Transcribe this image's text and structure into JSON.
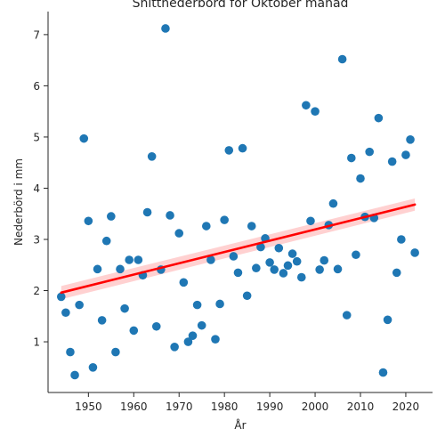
{
  "chart_data": {
    "type": "scatter",
    "title": "Snittnederbörd för Oktober månad",
    "xlabel": "År",
    "ylabel": "Nederbörd i mm",
    "xlim": [
      1941.1,
      2025.9
    ],
    "ylim": [
      0.01,
      7.45
    ],
    "x_ticks": [
      1950,
      1960,
      1970,
      1980,
      1990,
      2000,
      2010,
      2020
    ],
    "y_ticks": [
      1,
      2,
      3,
      4,
      5,
      6,
      7
    ],
    "grid": false,
    "legend": "none",
    "colors": {
      "points": "#1f77b4",
      "regression_line": "#ff0000",
      "confidence_band": "#ffb3b3",
      "axes": "#262626"
    },
    "series": [
      {
        "x": [
          1944,
          1945,
          1946,
          1947,
          1948,
          1949,
          1950,
          1951,
          1952,
          1953,
          1954,
          1955,
          1956,
          1957,
          1958,
          1959,
          1960,
          1961,
          1962,
          1963,
          1964,
          1965,
          1966,
          1967,
          1968,
          1969,
          1970,
          1971,
          1972,
          1973,
          1974,
          1975,
          1976,
          1977,
          1978,
          1979,
          1980,
          1981,
          1982,
          1983,
          1984,
          1985,
          1986,
          1987,
          1988,
          1989,
          1990,
          1991,
          1992,
          1993,
          1994,
          1995,
          1996,
          1997,
          1998,
          1999,
          2000,
          2001,
          2002,
          2003,
          2004,
          2005,
          2006,
          2007,
          2008,
          2009,
          2010,
          2011,
          2012,
          2013,
          2014,
          2015,
          2016,
          2017,
          2018,
          2019,
          2020,
          2021,
          2022
        ],
        "y": [
          1.88,
          1.57,
          0.8,
          0.35,
          1.72,
          4.97,
          3.36,
          0.5,
          2.42,
          1.42,
          2.97,
          3.45,
          0.8,
          2.42,
          1.65,
          2.6,
          1.22,
          2.6,
          2.3,
          3.53,
          4.62,
          1.3,
          2.41,
          7.12,
          3.47,
          0.9,
          3.12,
          2.16,
          1.0,
          1.12,
          1.72,
          1.32,
          3.26,
          2.6,
          1.05,
          1.74,
          3.38,
          4.74,
          2.67,
          2.35,
          4.78,
          1.9,
          3.26,
          2.44,
          2.85,
          3.02,
          2.55,
          2.41,
          2.83,
          2.34,
          2.49,
          2.72,
          2.57,
          2.26,
          5.62,
          3.36,
          5.5,
          2.41,
          2.59,
          3.28,
          3.7,
          2.42,
          6.52,
          1.52,
          4.59,
          2.7,
          4.19,
          3.44,
          4.71,
          3.42,
          5.37,
          0.4,
          1.43,
          4.52,
          2.35,
          3.0,
          4.65,
          4.95,
          2.74
        ]
      }
    ],
    "regression": {
      "x": [
        1944,
        2022
      ],
      "y": [
        1.96,
        3.68
      ],
      "ci_low": [
        1.83,
        3.56
      ],
      "ci_high": [
        2.09,
        3.8
      ]
    }
  }
}
